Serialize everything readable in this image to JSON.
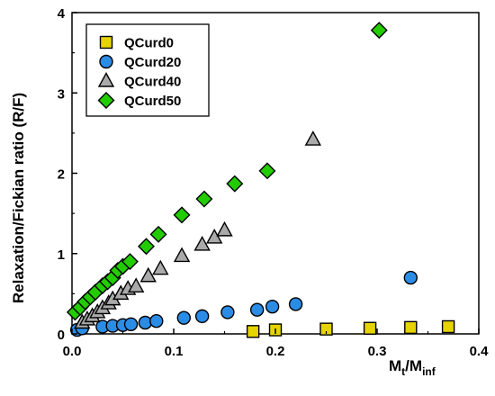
{
  "chart_data": {
    "type": "scatter",
    "title": "",
    "xlabel": {
      "main": "M",
      "sub1": "t",
      "sep": "/M",
      "sub2": "inf"
    },
    "ylabel": "Relaxation/Fickian ratio (R/F)",
    "xlim": [
      0.0,
      0.4
    ],
    "ylim": [
      0,
      4
    ],
    "xticks": [
      0.0,
      0.1,
      0.2,
      0.3,
      0.4
    ],
    "xtick_labels": [
      "0.0",
      "0.1",
      "0.2",
      "0.3",
      "0.4"
    ],
    "yticks": [
      0,
      1,
      2,
      3,
      4
    ],
    "ytick_labels": [
      "0",
      "1",
      "2",
      "3",
      "4"
    ],
    "grid": false,
    "legend_position": "top-left",
    "series": [
      {
        "name": "QCurd0",
        "marker": "square",
        "color": "#e6d400",
        "points": [
          [
            0.178,
            0.03
          ],
          [
            0.2,
            0.05
          ],
          [
            0.25,
            0.06
          ],
          [
            0.293,
            0.07
          ],
          [
            0.333,
            0.08
          ],
          [
            0.37,
            0.09
          ]
        ]
      },
      {
        "name": "QCurd20",
        "marker": "circle",
        "color": "#2b8ce6",
        "points": [
          [
            0.005,
            0.05
          ],
          [
            0.01,
            0.07
          ],
          [
            0.03,
            0.09
          ],
          [
            0.04,
            0.1
          ],
          [
            0.05,
            0.11
          ],
          [
            0.058,
            0.12
          ],
          [
            0.072,
            0.14
          ],
          [
            0.083,
            0.16
          ],
          [
            0.11,
            0.2
          ],
          [
            0.128,
            0.22
          ],
          [
            0.153,
            0.27
          ],
          [
            0.182,
            0.3
          ],
          [
            0.197,
            0.34
          ],
          [
            0.22,
            0.37
          ],
          [
            0.333,
            0.7
          ]
        ]
      },
      {
        "name": "QCurd40",
        "marker": "triangle",
        "color": "#aaaaaa",
        "points": [
          [
            0.01,
            0.14
          ],
          [
            0.015,
            0.18
          ],
          [
            0.02,
            0.22
          ],
          [
            0.025,
            0.27
          ],
          [
            0.03,
            0.32
          ],
          [
            0.036,
            0.38
          ],
          [
            0.04,
            0.43
          ],
          [
            0.048,
            0.5
          ],
          [
            0.055,
            0.56
          ],
          [
            0.063,
            0.59
          ],
          [
            0.075,
            0.72
          ],
          [
            0.087,
            0.81
          ],
          [
            0.108,
            0.97
          ],
          [
            0.128,
            1.11
          ],
          [
            0.14,
            1.2
          ],
          [
            0.15,
            1.29
          ],
          [
            0.237,
            2.42
          ]
        ]
      },
      {
        "name": "QCurd50",
        "marker": "diamond",
        "color": "#22cc00",
        "points": [
          [
            0.003,
            0.27
          ],
          [
            0.008,
            0.33
          ],
          [
            0.013,
            0.4
          ],
          [
            0.018,
            0.46
          ],
          [
            0.023,
            0.52
          ],
          [
            0.03,
            0.6
          ],
          [
            0.035,
            0.65
          ],
          [
            0.04,
            0.7
          ],
          [
            0.045,
            0.79
          ],
          [
            0.05,
            0.84
          ],
          [
            0.057,
            0.9
          ],
          [
            0.073,
            1.09
          ],
          [
            0.085,
            1.24
          ],
          [
            0.108,
            1.48
          ],
          [
            0.13,
            1.68
          ],
          [
            0.16,
            1.87
          ],
          [
            0.192,
            2.03
          ],
          [
            0.302,
            3.78
          ]
        ]
      }
    ]
  }
}
